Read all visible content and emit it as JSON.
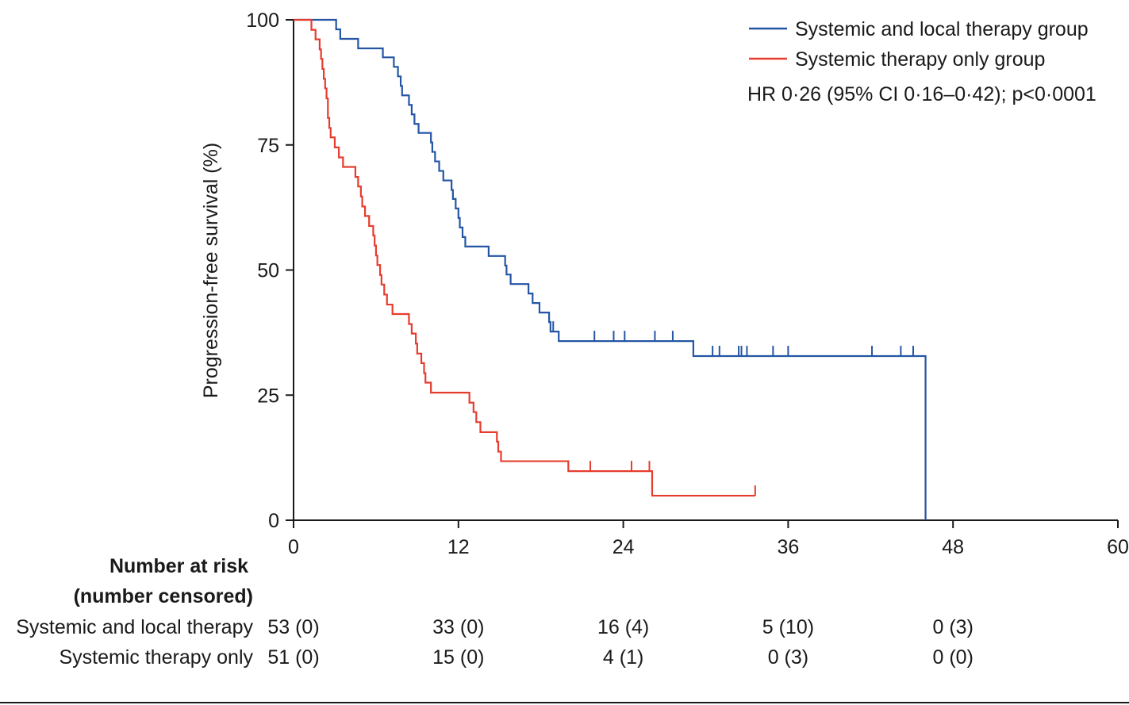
{
  "chart_data": {
    "type": "line",
    "subtype": "kaplan-meier",
    "ylabel": "Progression-free survival (%)",
    "xlim": [
      0,
      60
    ],
    "ylim": [
      0,
      100
    ],
    "x_ticks": [
      0,
      12,
      24,
      36,
      48,
      60
    ],
    "y_ticks": [
      0,
      25,
      50,
      75,
      100
    ],
    "legend_position": "top-right",
    "annotation": "HR 0·26 (95% CI 0·16–0·42); p<0·0001",
    "series": [
      {
        "name": "Systemic and local therapy group",
        "color": "#2456a4",
        "steps": [
          [
            0,
            100
          ],
          [
            3.1,
            98.1
          ],
          [
            3.4,
            96.2
          ],
          [
            4.7,
            94.3
          ],
          [
            6.5,
            92.5
          ],
          [
            7.3,
            90.6
          ],
          [
            7.6,
            88.7
          ],
          [
            7.8,
            86.8
          ],
          [
            7.9,
            84.9
          ],
          [
            8.4,
            83.0
          ],
          [
            8.6,
            81.1
          ],
          [
            8.8,
            79.2
          ],
          [
            9.1,
            77.4
          ],
          [
            10.0,
            75.5
          ],
          [
            10.1,
            73.6
          ],
          [
            10.3,
            71.7
          ],
          [
            10.6,
            69.8
          ],
          [
            10.9,
            67.9
          ],
          [
            11.5,
            66.0
          ],
          [
            11.6,
            64.2
          ],
          [
            11.8,
            62.3
          ],
          [
            12.0,
            60.4
          ],
          [
            12.1,
            58.5
          ],
          [
            12.3,
            56.6
          ],
          [
            12.5,
            54.7
          ],
          [
            14.2,
            52.8
          ],
          [
            15.4,
            50.9
          ],
          [
            15.5,
            49.1
          ],
          [
            15.8,
            47.2
          ],
          [
            17.1,
            45.3
          ],
          [
            17.4,
            43.4
          ],
          [
            17.9,
            41.5
          ],
          [
            18.6,
            39.6
          ],
          [
            18.7,
            37.7
          ],
          [
            19.3,
            35.8
          ],
          [
            29.1,
            32.8
          ],
          [
            46.0,
            0
          ]
        ],
        "end_x": 46.0,
        "censored": [
          [
            18.9,
            37.7
          ],
          [
            21.9,
            35.8
          ],
          [
            23.3,
            35.8
          ],
          [
            24.1,
            35.8
          ],
          [
            26.3,
            35.8
          ],
          [
            27.6,
            35.8
          ],
          [
            30.5,
            32.8
          ],
          [
            31.0,
            32.8
          ],
          [
            32.4,
            32.8
          ],
          [
            32.6,
            32.8
          ],
          [
            33.0,
            32.8
          ],
          [
            34.9,
            32.8
          ],
          [
            36.0,
            32.8
          ],
          [
            42.1,
            32.8
          ],
          [
            44.2,
            32.8
          ],
          [
            45.1,
            32.8
          ]
        ]
      },
      {
        "name": "Systemic therapy only group",
        "color": "#e63c2e",
        "steps": [
          [
            0,
            100
          ],
          [
            1.3,
            98.0
          ],
          [
            1.6,
            96.1
          ],
          [
            1.9,
            94.1
          ],
          [
            2.0,
            92.2
          ],
          [
            2.1,
            90.2
          ],
          [
            2.2,
            88.2
          ],
          [
            2.3,
            86.3
          ],
          [
            2.4,
            84.3
          ],
          [
            2.5,
            80.4
          ],
          [
            2.6,
            78.4
          ],
          [
            2.7,
            76.5
          ],
          [
            3.0,
            74.5
          ],
          [
            3.3,
            72.5
          ],
          [
            3.6,
            70.6
          ],
          [
            4.5,
            68.6
          ],
          [
            4.7,
            66.7
          ],
          [
            4.9,
            64.7
          ],
          [
            5.0,
            62.7
          ],
          [
            5.2,
            60.8
          ],
          [
            5.5,
            58.8
          ],
          [
            5.8,
            56.9
          ],
          [
            5.9,
            54.9
          ],
          [
            6.0,
            52.9
          ],
          [
            6.1,
            51.0
          ],
          [
            6.3,
            49.0
          ],
          [
            6.4,
            47.1
          ],
          [
            6.6,
            45.1
          ],
          [
            6.8,
            43.1
          ],
          [
            7.2,
            41.2
          ],
          [
            8.4,
            39.2
          ],
          [
            8.6,
            37.3
          ],
          [
            8.9,
            35.3
          ],
          [
            9.0,
            33.3
          ],
          [
            9.3,
            31.4
          ],
          [
            9.5,
            29.4
          ],
          [
            9.6,
            27.5
          ],
          [
            10.0,
            25.5
          ],
          [
            12.8,
            23.5
          ],
          [
            13.1,
            21.6
          ],
          [
            13.3,
            19.6
          ],
          [
            13.6,
            17.6
          ],
          [
            14.8,
            15.7
          ],
          [
            14.9,
            13.7
          ],
          [
            15.1,
            11.8
          ],
          [
            20.0,
            9.8
          ],
          [
            26.1,
            4.9
          ],
          [
            33.6,
            4.9
          ]
        ],
        "end_x": 33.6,
        "censored": [
          [
            21.6,
            9.8
          ],
          [
            24.6,
            9.8
          ],
          [
            25.9,
            9.8
          ],
          [
            33.6,
            4.9
          ]
        ]
      }
    ],
    "risk_table": {
      "header_line1": "Number at risk",
      "header_line2": "(number censored)",
      "rows": [
        {
          "label": "Systemic and local therapy",
          "values": [
            "53 (0)",
            "33 (0)",
            "16 (4)",
            "5 (10)",
            "0 (3)"
          ]
        },
        {
          "label": "Systemic therapy only",
          "values": [
            "51 (0)",
            "15 (0)",
            "4 (1)",
            "0 (3)",
            "0 (0)"
          ]
        }
      ]
    }
  }
}
